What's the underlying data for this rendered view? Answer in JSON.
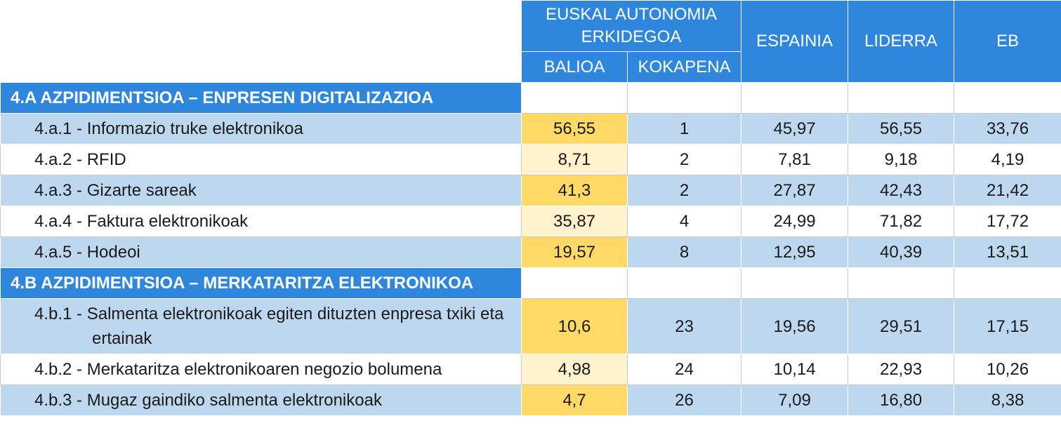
{
  "header": {
    "region": "EUSKAL AUTONOMIA ERKIDEGOA",
    "value": "BALIOA",
    "rank": "KOKAPENA",
    "columns": [
      "ESPAINIA",
      "LIDERRA",
      "EB"
    ]
  },
  "sections": [
    {
      "title": "4.A AZPIDIMENTSIOA – ENPRESEN DIGITALIZAZIOA",
      "rows": [
        {
          "label": "4.a.1 - Informazio truke elektronikoa",
          "cells": [
            "56,55",
            "1",
            "45,97",
            "56,55",
            "33,76"
          ]
        },
        {
          "label": "4.a.2 - RFID",
          "cells": [
            "8,71",
            "2",
            "7,81",
            "9,18",
            "4,19"
          ]
        },
        {
          "label": "4.a.3 - Gizarte sareak",
          "cells": [
            "41,3",
            "2",
            "27,87",
            "42,43",
            "21,42"
          ]
        },
        {
          "label": "4.a.4 - Faktura elektronikoak",
          "cells": [
            "35,87",
            "4",
            "24,99",
            "71,82",
            "17,72"
          ]
        },
        {
          "label": "4.a.5 - Hodeoi",
          "cells": [
            "19,57",
            "8",
            "12,95",
            "40,39",
            "13,51"
          ]
        }
      ]
    },
    {
      "title": "4.B AZPIDIMENTSIOA – MERKATARITZA ELEKTRONIKOA",
      "rows": [
        {
          "label": "4.b.1 - Salmenta elektronikoak egiten dituzten enpresa txiki eta ertainak",
          "cells": [
            "10,6",
            "23",
            "19,56",
            "29,51",
            "17,15"
          ]
        },
        {
          "label": "4.b.2 - Merkataritza elektronikoaren negozio bolumena",
          "cells": [
            "4,98",
            "24",
            "10,14",
            "22,93",
            "10,26"
          ]
        },
        {
          "label": "4.b.3 - Mugaz gaindiko salmenta elektronikoak",
          "cells": [
            "4,7",
            "26",
            "7,09",
            "16,80",
            "8,38"
          ]
        }
      ]
    }
  ]
}
